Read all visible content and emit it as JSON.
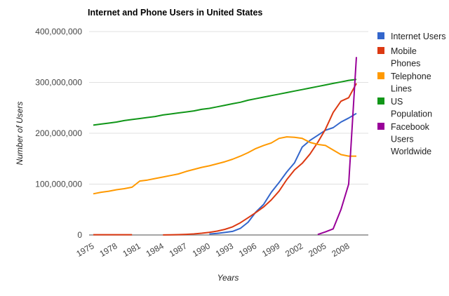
{
  "chart_data": {
    "type": "line",
    "title": "Internet and Phone Users in United States",
    "xlabel": "Years",
    "ylabel": "Number of Users",
    "ylim": [
      0,
      400000000
    ],
    "yticks": [
      "0",
      "100,000,000",
      "200,000,000",
      "300,000,000",
      "400,000,000"
    ],
    "ytick_values": [
      0,
      100000000,
      200000000,
      300000000,
      400000000
    ],
    "xticks": [
      "1975",
      "1978",
      "1981",
      "1984",
      "1987",
      "1990",
      "1993",
      "1996",
      "1999",
      "2002",
      "2005",
      "2008"
    ],
    "grid": true,
    "legend_position": "right",
    "x": [
      1975,
      1976,
      1977,
      1978,
      1979,
      1980,
      1981,
      1982,
      1983,
      1984,
      1985,
      1986,
      1987,
      1988,
      1989,
      1990,
      1991,
      1992,
      1993,
      1994,
      1995,
      1996,
      1997,
      1998,
      1999,
      2000,
      2001,
      2002,
      2003,
      2004,
      2005,
      2006,
      2007,
      2008,
      2009
    ],
    "series": [
      {
        "name": "Internet Users",
        "color": "#3366cc",
        "values": [
          null,
          null,
          null,
          null,
          null,
          null,
          null,
          null,
          null,
          null,
          null,
          null,
          null,
          null,
          null,
          2000000,
          3000000,
          5000000,
          7000000,
          13000000,
          25000000,
          45000000,
          60000000,
          84000000,
          103000000,
          124000000,
          142000000,
          173000000,
          186000000,
          196000000,
          206000000,
          211000000,
          222000000,
          230000000,
          239000000
        ]
      },
      {
        "name": "Mobile Phones",
        "color": "#dc3912",
        "values": [
          500000,
          500000,
          500000,
          500000,
          500000,
          500000,
          null,
          null,
          null,
          100000,
          300000,
          700000,
          1200000,
          2100000,
          3500000,
          5300000,
          7600000,
          11000000,
          16000000,
          24000000,
          34000000,
          44000000,
          55000000,
          69000000,
          86000000,
          109000000,
          128000000,
          141000000,
          159000000,
          182000000,
          208000000,
          241000000,
          263000000,
          270000000,
          298000000
        ]
      },
      {
        "name": "Telephone Lines",
        "color": "#ff9900",
        "values": [
          81000000,
          84000000,
          86000000,
          89000000,
          91000000,
          94000000,
          106000000,
          108000000,
          111000000,
          114000000,
          117000000,
          120000000,
          125000000,
          129000000,
          133000000,
          136000000,
          140000000,
          144000000,
          149000000,
          155000000,
          162000000,
          170000000,
          176000000,
          181000000,
          190000000,
          193000000,
          192000000,
          190000000,
          182000000,
          178000000,
          176000000,
          167000000,
          158000000,
          155000000,
          155000000
        ]
      },
      {
        "name": "US Population",
        "color": "#109618",
        "values": [
          216000000,
          218000000,
          220000000,
          222000000,
          225000000,
          227000000,
          229000000,
          231000000,
          233000000,
          236000000,
          238000000,
          240000000,
          242000000,
          244000000,
          247000000,
          249000000,
          252000000,
          255000000,
          258000000,
          261000000,
          265000000,
          268000000,
          271000000,
          274000000,
          277000000,
          280000000,
          283000000,
          286000000,
          289000000,
          292000000,
          295000000,
          298000000,
          301000000,
          304000000,
          306000000
        ]
      },
      {
        "name": "Facebook Users Worldwide",
        "color": "#990099",
        "values": [
          null,
          null,
          null,
          null,
          null,
          null,
          null,
          null,
          null,
          null,
          null,
          null,
          null,
          null,
          null,
          null,
          null,
          null,
          null,
          null,
          null,
          null,
          null,
          null,
          null,
          null,
          null,
          null,
          null,
          1000000,
          6000000,
          12000000,
          50000000,
          100000000,
          350000000
        ]
      }
    ],
    "legend_lines": [
      [
        "Internet Users"
      ],
      [
        "Mobile",
        "Phones"
      ],
      [
        "Telephone",
        "Lines"
      ],
      [
        "US",
        "Population"
      ],
      [
        "Facebook",
        "Users",
        "Worldwide"
      ]
    ]
  }
}
